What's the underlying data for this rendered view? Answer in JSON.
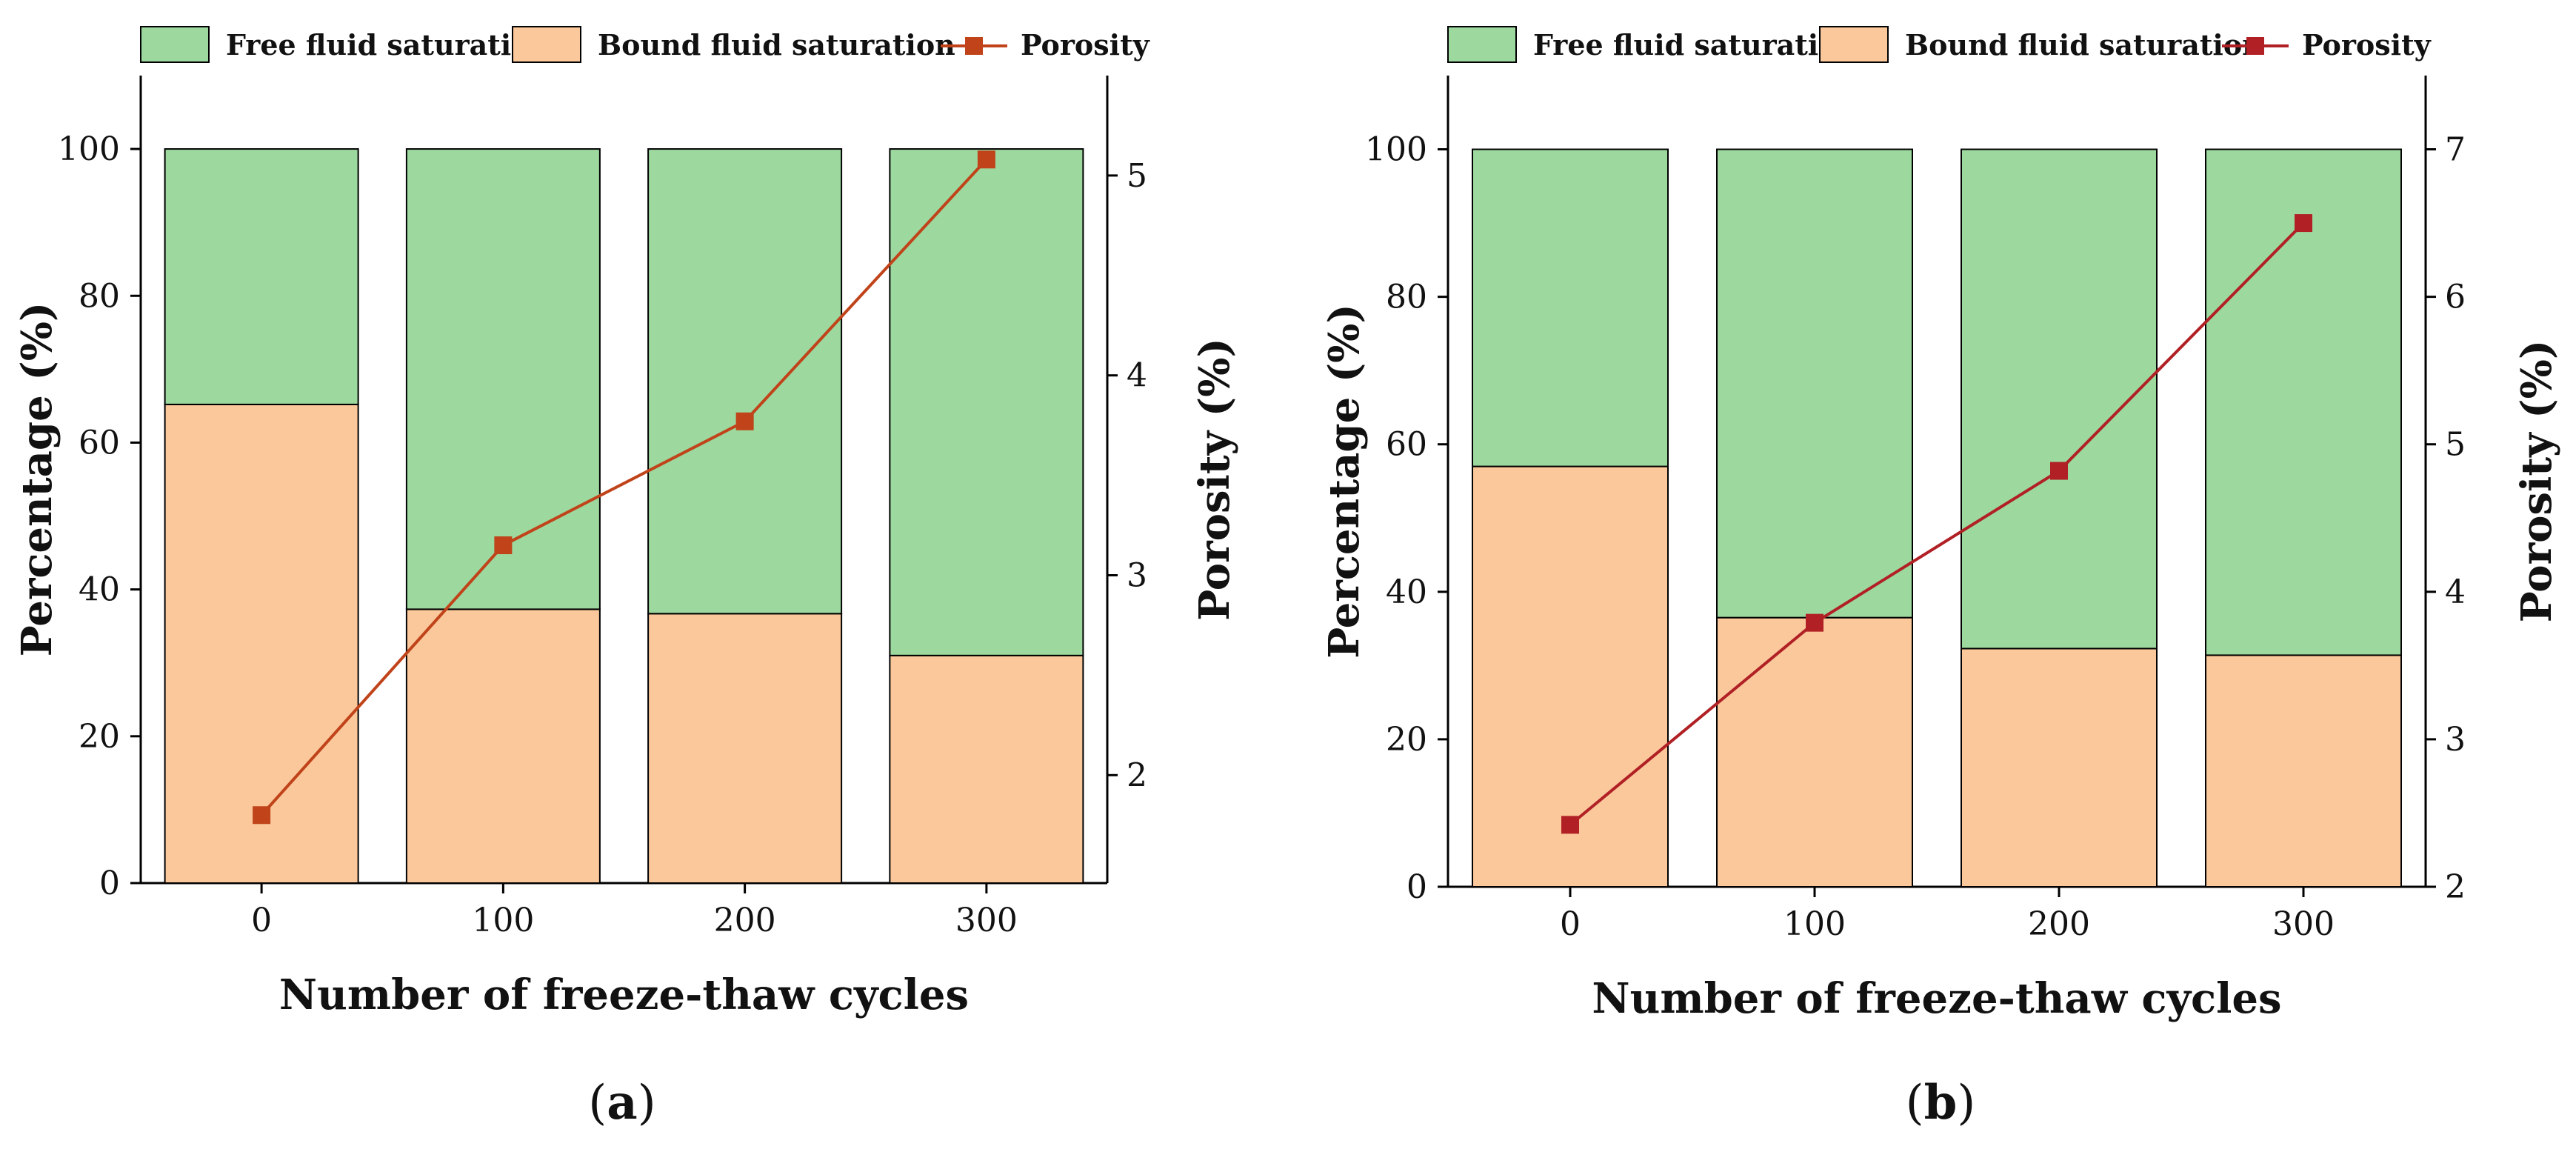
{
  "colors": {
    "free": "#9dd89e",
    "bound": "#fac89b",
    "porosity_a": "#c0431a",
    "porosity_b": "#b02025",
    "axis": "#000000"
  },
  "chart_data": [
    {
      "type": "bar",
      "stacked": true,
      "panel_label": "a",
      "categories": [
        "0",
        "100",
        "200",
        "300"
      ],
      "series": [
        {
          "name": "Bound fluid saturation",
          "values": [
            65.2,
            37.3,
            36.7,
            31.0
          ]
        },
        {
          "name": "Free fluid saturation",
          "values": [
            34.8,
            62.7,
            63.3,
            69.0
          ]
        }
      ],
      "line_series": {
        "name": "Porosity",
        "axis": "right",
        "values": [
          1.8,
          3.15,
          3.77,
          5.08
        ]
      },
      "legend": [
        "Free fluid saturation",
        "Bound fluid saturation",
        "Porosity"
      ],
      "xlabel": "Number of freeze-thaw cycles",
      "ylabel": "Percentage (%)",
      "y2label": "Porosity (%)",
      "ylim": [
        0,
        110
      ],
      "yticks": [
        "0",
        "20",
        "40",
        "60",
        "80",
        "100"
      ],
      "y2lim": [
        1.46,
        5.5
      ],
      "y2ticks": [
        "2",
        "3",
        "4",
        "5"
      ]
    },
    {
      "type": "bar",
      "stacked": true,
      "panel_label": "b",
      "categories": [
        "0",
        "100",
        "200",
        "300"
      ],
      "series": [
        {
          "name": "Bound fluid saturation",
          "values": [
            57.0,
            36.5,
            32.3,
            31.4
          ]
        },
        {
          "name": "Free fluid saturation",
          "values": [
            43.0,
            63.5,
            67.7,
            68.6
          ]
        }
      ],
      "line_series": {
        "name": "Porosity",
        "axis": "right",
        "values": [
          2.42,
          3.79,
          4.82,
          6.5
        ]
      },
      "legend": [
        "Free fluid saturation",
        "Bound fluid saturation",
        "Porosity"
      ],
      "xlabel": "Number of freeze-thaw cycles",
      "ylabel": "Percentage (%)",
      "y2label": "Porosity (%)",
      "ylim": [
        0,
        110
      ],
      "yticks": [
        "0",
        "20",
        "40",
        "60",
        "80",
        "100"
      ],
      "y2lim": [
        2,
        7.5
      ],
      "y2ticks": [
        "2",
        "3",
        "4",
        "5",
        "6",
        "7"
      ]
    }
  ]
}
